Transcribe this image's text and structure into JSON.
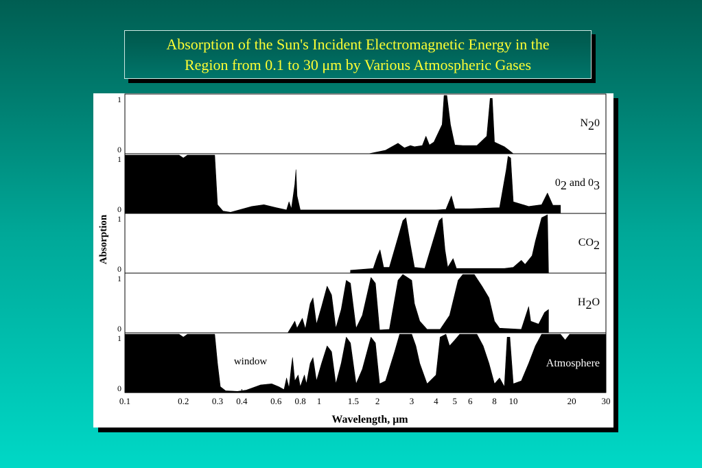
{
  "title": {
    "line1": "Absorption of the Sun's Incident Electromagnetic Energy in the",
    "line2": "Region from 0.1 to 30 μm by Various Atmospheric Gases"
  },
  "chart_data": {
    "type": "area",
    "title": "Absorption of the Sun's Incident Electromagnetic Energy in the Region from 0.1 to 30 μm by Various Atmospheric Gases",
    "xlabel": "Wavelength, μm",
    "ylabel": "Absorption",
    "xscale": "log",
    "xlim": [
      0.1,
      30
    ],
    "ylim": [
      0,
      1
    ],
    "x_ticks": [
      {
        "v": 0.1,
        "label": "0.1"
      },
      {
        "v": 0.2,
        "label": "0.2"
      },
      {
        "v": 0.3,
        "label": "0.3"
      },
      {
        "v": 0.4,
        "label": "0.4"
      },
      {
        "v": 0.6,
        "label": "0.6"
      },
      {
        "v": 0.8,
        "label": "0.8"
      },
      {
        "v": 1,
        "label": "1"
      },
      {
        "v": 1.5,
        "label": "1.5"
      },
      {
        "v": 2,
        "label": "2"
      },
      {
        "v": 3,
        "label": "3"
      },
      {
        "v": 4,
        "label": "4"
      },
      {
        "v": 5,
        "label": "5"
      },
      {
        "v": 6,
        "label": "6"
      },
      {
        "v": 8,
        "label": "8"
      },
      {
        "v": 10,
        "label": "10"
      },
      {
        "v": 20,
        "label": "20"
      },
      {
        "v": 30,
        "label": "30"
      }
    ],
    "y_tick_labels": {
      "top": "1",
      "bottom": "0"
    },
    "panels": [
      {
        "name": "N20",
        "label_main": "N",
        "label_sub": "2",
        "label_tail": "0",
        "points": [
          [
            1.8,
            0
          ],
          [
            2.2,
            0.06
          ],
          [
            2.55,
            0.18
          ],
          [
            2.75,
            0.1
          ],
          [
            2.95,
            0.14
          ],
          [
            3.1,
            0.12
          ],
          [
            3.4,
            0.14
          ],
          [
            3.55,
            0.3
          ],
          [
            3.7,
            0.15
          ],
          [
            3.9,
            0.2
          ],
          [
            4.3,
            0.5
          ],
          [
            4.4,
            1
          ],
          [
            4.55,
            1
          ],
          [
            4.75,
            0.5
          ],
          [
            5.0,
            0.15
          ],
          [
            5.5,
            0.14
          ],
          [
            6.5,
            0.14
          ],
          [
            7.3,
            0.3
          ],
          [
            7.6,
            0.95
          ],
          [
            7.8,
            0.95
          ],
          [
            8.0,
            0.2
          ],
          [
            9.0,
            0.12
          ],
          [
            9.5,
            0.06
          ],
          [
            10.0,
            0
          ]
        ]
      },
      {
        "name": "02 and 03",
        "label_main": "0",
        "label_sub": "2",
        "label_tail": " and 0",
        "label_sub2": "3",
        "points": [
          [
            0.1,
            1
          ],
          [
            0.19,
            1
          ],
          [
            0.2,
            0.95
          ],
          [
            0.21,
            1
          ],
          [
            0.29,
            1
          ],
          [
            0.3,
            0.15
          ],
          [
            0.32,
            0.04
          ],
          [
            0.35,
            0.02
          ],
          [
            0.45,
            0.12
          ],
          [
            0.52,
            0.15
          ],
          [
            0.6,
            0.1
          ],
          [
            0.68,
            0.06
          ],
          [
            0.7,
            0.2
          ],
          [
            0.72,
            0.08
          ],
          [
            0.75,
            0.5
          ],
          [
            0.76,
            0.75
          ],
          [
            0.77,
            0.3
          ],
          [
            0.8,
            0.06
          ],
          [
            1.0,
            0.06
          ],
          [
            2.0,
            0.06
          ],
          [
            4.0,
            0.06
          ],
          [
            4.5,
            0.07
          ],
          [
            4.8,
            0.3
          ],
          [
            5.0,
            0.08
          ],
          [
            6.0,
            0.08
          ],
          [
            8.5,
            0.1
          ],
          [
            9.2,
            0.75
          ],
          [
            9.4,
            0.98
          ],
          [
            9.7,
            0.95
          ],
          [
            10.0,
            0.2
          ],
          [
            12.0,
            0.12
          ],
          [
            14.0,
            0.15
          ],
          [
            15.0,
            0.35
          ],
          [
            16.0,
            0.14
          ],
          [
            17.5,
            0.14
          ],
          [
            17.5,
            0
          ]
        ]
      },
      {
        "name": "CO2",
        "label_main": "CO",
        "label_sub": "2",
        "label_tail": "",
        "points": [
          [
            1.45,
            0
          ],
          [
            1.45,
            0.05
          ],
          [
            1.9,
            0.08
          ],
          [
            2.0,
            0.3
          ],
          [
            2.06,
            0.4
          ],
          [
            2.15,
            0.1
          ],
          [
            2.3,
            0.1
          ],
          [
            2.7,
            0.9
          ],
          [
            2.8,
            0.95
          ],
          [
            2.95,
            0.5
          ],
          [
            3.1,
            0.1
          ],
          [
            3.5,
            0.08
          ],
          [
            4.15,
            0.9
          ],
          [
            4.3,
            0.95
          ],
          [
            4.45,
            0.4
          ],
          [
            4.6,
            0.1
          ],
          [
            4.9,
            0.25
          ],
          [
            5.1,
            0.08
          ],
          [
            9.0,
            0.08
          ],
          [
            10.0,
            0.1
          ],
          [
            11.0,
            0.22
          ],
          [
            11.5,
            0.15
          ],
          [
            12.5,
            0.3
          ],
          [
            13.0,
            0.55
          ],
          [
            14.0,
            0.95
          ],
          [
            15.0,
            1
          ],
          [
            15.2,
            0
          ]
        ]
      },
      {
        "name": "H2O",
        "label_main": "H",
        "label_sub": "2",
        "label_tail": "O",
        "points": [
          [
            0.69,
            0
          ],
          [
            0.72,
            0.1
          ],
          [
            0.75,
            0.2
          ],
          [
            0.77,
            0.08
          ],
          [
            0.82,
            0.25
          ],
          [
            0.85,
            0.07
          ],
          [
            0.9,
            0.5
          ],
          [
            0.93,
            0.6
          ],
          [
            0.97,
            0.15
          ],
          [
            1.03,
            0.45
          ],
          [
            1.1,
            0.8
          ],
          [
            1.16,
            0.65
          ],
          [
            1.22,
            0.08
          ],
          [
            1.3,
            0.4
          ],
          [
            1.38,
            0.9
          ],
          [
            1.45,
            0.85
          ],
          [
            1.55,
            0.08
          ],
          [
            1.67,
            0.3
          ],
          [
            1.85,
            0.95
          ],
          [
            1.95,
            0.85
          ],
          [
            2.05,
            0.05
          ],
          [
            2.3,
            0.06
          ],
          [
            2.55,
            0.9
          ],
          [
            2.7,
            1
          ],
          [
            2.85,
            0.95
          ],
          [
            3.0,
            0.9
          ],
          [
            3.1,
            0.5
          ],
          [
            3.3,
            0.2
          ],
          [
            3.6,
            0.06
          ],
          [
            4.2,
            0.06
          ],
          [
            4.7,
            0.3
          ],
          [
            5.2,
            0.9
          ],
          [
            5.5,
            1
          ],
          [
            6.3,
            1
          ],
          [
            6.9,
            0.8
          ],
          [
            7.5,
            0.6
          ],
          [
            8.0,
            0.2
          ],
          [
            8.5,
            0.08
          ],
          [
            11.0,
            0.06
          ],
          [
            12.0,
            0.45
          ],
          [
            12.3,
            0.2
          ],
          [
            13.5,
            0.15
          ],
          [
            14.5,
            0.35
          ],
          [
            15.2,
            0.4
          ],
          [
            15.2,
            0
          ]
        ]
      },
      {
        "name": "Atmosphere",
        "label_main": "Atmosphere",
        "label_sub": "",
        "label_tail": "",
        "window_label": "window",
        "points": [
          [
            0.1,
            1
          ],
          [
            0.19,
            1
          ],
          [
            0.2,
            0.95
          ],
          [
            0.21,
            1
          ],
          [
            0.29,
            1
          ],
          [
            0.3,
            0.5
          ],
          [
            0.31,
            0.1
          ],
          [
            0.33,
            0.03
          ],
          [
            0.38,
            0.02
          ],
          [
            0.42,
            0.04
          ],
          [
            0.5,
            0.13
          ],
          [
            0.57,
            0.15
          ],
          [
            0.62,
            0.1
          ],
          [
            0.66,
            0.05
          ],
          [
            0.68,
            0.25
          ],
          [
            0.7,
            0.08
          ],
          [
            0.72,
            0.45
          ],
          [
            0.73,
            0.6
          ],
          [
            0.75,
            0.2
          ],
          [
            0.78,
            0.3
          ],
          [
            0.8,
            0.1
          ],
          [
            0.84,
            0.3
          ],
          [
            0.86,
            0.15
          ],
          [
            0.9,
            0.5
          ],
          [
            0.93,
            0.6
          ],
          [
            0.97,
            0.2
          ],
          [
            1.03,
            0.5
          ],
          [
            1.1,
            0.8
          ],
          [
            1.16,
            0.7
          ],
          [
            1.22,
            0.15
          ],
          [
            1.3,
            0.5
          ],
          [
            1.38,
            0.95
          ],
          [
            1.45,
            0.85
          ],
          [
            1.55,
            0.15
          ],
          [
            1.67,
            0.4
          ],
          [
            1.85,
            0.95
          ],
          [
            1.95,
            0.85
          ],
          [
            2.05,
            0.15
          ],
          [
            2.2,
            0.2
          ],
          [
            2.45,
            0.7
          ],
          [
            2.6,
            1
          ],
          [
            3.0,
            1
          ],
          [
            3.15,
            0.8
          ],
          [
            3.3,
            0.5
          ],
          [
            3.6,
            0.15
          ],
          [
            4.0,
            0.3
          ],
          [
            4.2,
            0.95
          ],
          [
            4.5,
            1
          ],
          [
            4.7,
            0.8
          ],
          [
            5.0,
            0.9
          ],
          [
            5.3,
            1
          ],
          [
            6.5,
            1
          ],
          [
            7.0,
            0.8
          ],
          [
            7.5,
            0.5
          ],
          [
            8.0,
            0.15
          ],
          [
            8.5,
            0.25
          ],
          [
            9.0,
            0.1
          ],
          [
            9.3,
            0.95
          ],
          [
            9.6,
            0.95
          ],
          [
            10.0,
            0.15
          ],
          [
            11.0,
            0.2
          ],
          [
            12.0,
            0.5
          ],
          [
            13.0,
            0.8
          ],
          [
            14.0,
            1
          ],
          [
            17.5,
            1
          ],
          [
            18.5,
            0.9
          ],
          [
            19.5,
            1
          ],
          [
            30,
            1
          ],
          [
            30,
            0
          ]
        ]
      }
    ]
  }
}
